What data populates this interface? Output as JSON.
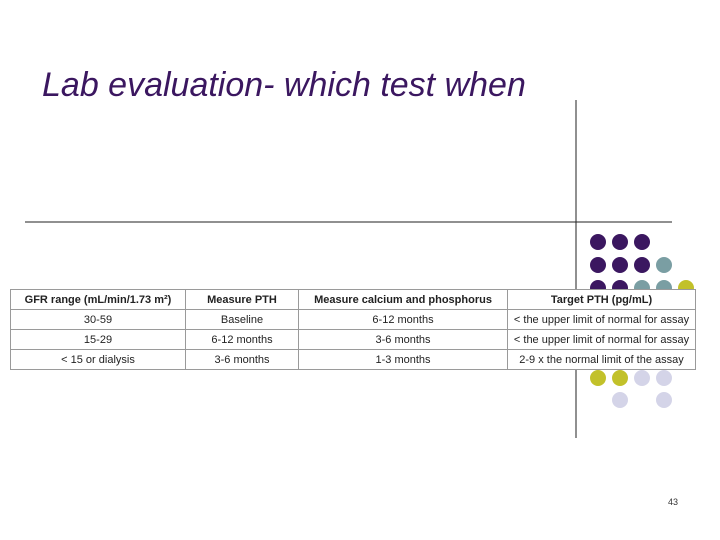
{
  "header": {
    "title": "Lab evaluation- which test when"
  },
  "table": {
    "columns": [
      "GFR range (mL/min/1.73 m²)",
      "Measure PTH",
      "Measure calcium and phosphorus",
      "Target PTH (pg/mL)"
    ],
    "rows": [
      [
        "30-59",
        "Baseline",
        "6-12 months",
        "< the upper limit of normal for assay"
      ],
      [
        "15-29",
        "6-12 months",
        "3-6 months",
        "< the upper limit of normal for assay"
      ],
      [
        "< 15 or dialysis",
        "3-6 months",
        "1-3 months",
        "2-9 x the normal limit of the assay"
      ]
    ]
  },
  "footer": {
    "page_number": "43"
  }
}
